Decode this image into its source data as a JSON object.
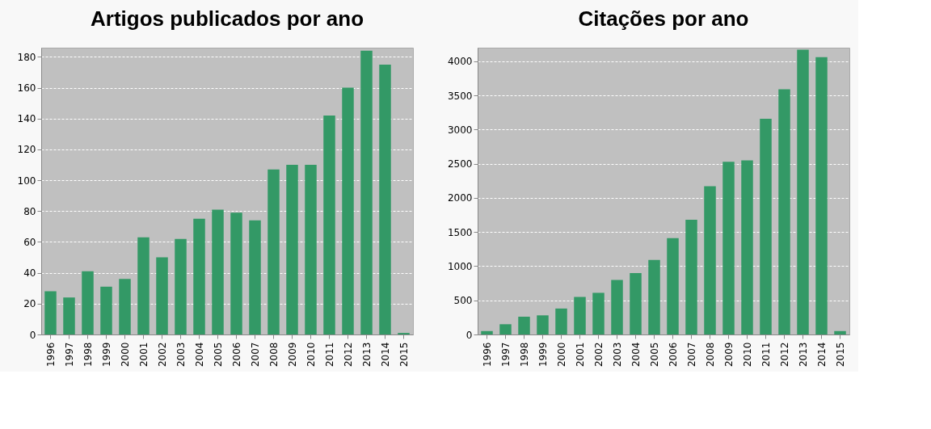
{
  "chart_data": [
    {
      "type": "bar",
      "title": "Artigos publicados por ano",
      "categories": [
        "1996",
        "1997",
        "1998",
        "1999",
        "2000",
        "2001",
        "2002",
        "2003",
        "2004",
        "2005",
        "2006",
        "2007",
        "2008",
        "2009",
        "2010",
        "2011",
        "2012",
        "2013",
        "2014",
        "2015"
      ],
      "series": [
        {
          "color": "#339966",
          "values": [
            28,
            24,
            41,
            31,
            36,
            63,
            50,
            62,
            75,
            81,
            79,
            74,
            107,
            110,
            110,
            142,
            160,
            184,
            175,
            1
          ]
        }
      ],
      "ylim": [
        0,
        186
      ],
      "yticks": [
        0,
        20,
        40,
        60,
        80,
        100,
        120,
        140,
        160,
        180
      ],
      "grid": "y",
      "legend": false
    },
    {
      "type": "bar",
      "title": "Citações por ano",
      "categories": [
        "1996",
        "1997",
        "1998",
        "1999",
        "2000",
        "2001",
        "2002",
        "2003",
        "2004",
        "2005",
        "2006",
        "2007",
        "2008",
        "2009",
        "2010",
        "2011",
        "2012",
        "2013",
        "2014",
        "2015"
      ],
      "series": [
        {
          "color": "#339966",
          "values": [
            50,
            150,
            260,
            280,
            380,
            550,
            610,
            800,
            900,
            1090,
            1410,
            1680,
            2170,
            2530,
            2550,
            3160,
            3590,
            4170,
            4060,
            50
          ]
        }
      ],
      "ylim": [
        0,
        4200
      ],
      "yticks": [
        0,
        500,
        1000,
        1500,
        2000,
        2500,
        3000,
        3500,
        4000
      ],
      "grid": "y",
      "legend": false
    }
  ]
}
